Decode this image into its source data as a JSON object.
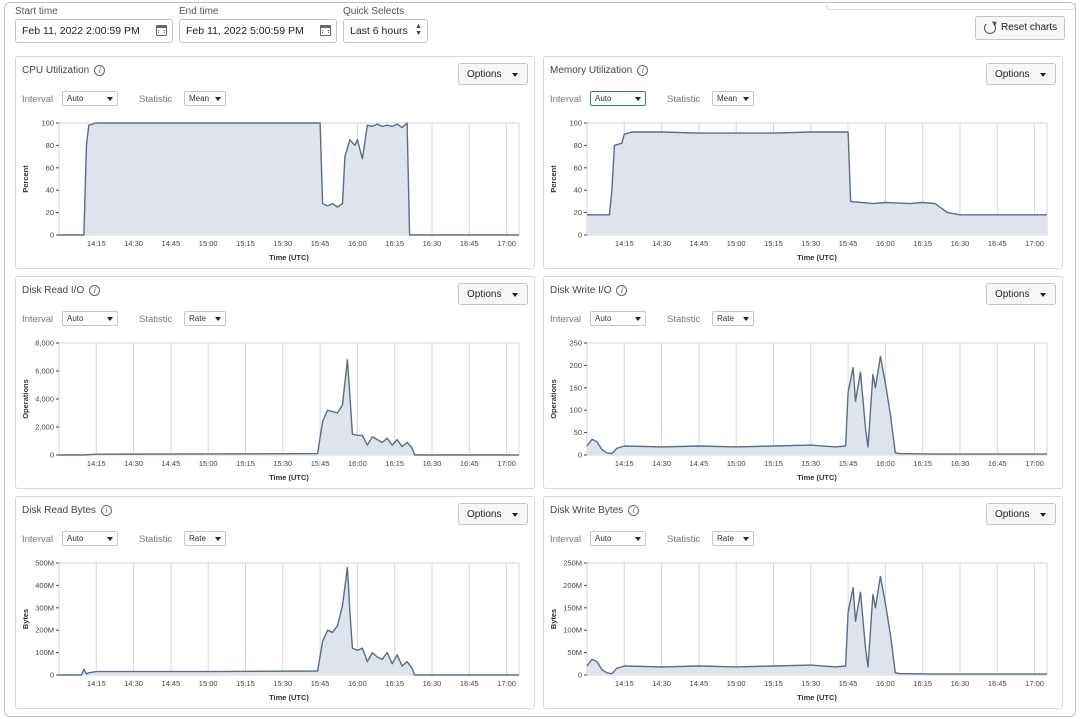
{
  "filters": {
    "start_label": "Start time",
    "start_value": "Feb 11, 2022 2:00:59 PM",
    "end_label": "End time",
    "end_value": "Feb 11, 2022 5:00:59 PM",
    "quick_label": "Quick Selects",
    "quick_value": "Last 6 hours",
    "reset_label": "Reset charts"
  },
  "controls": {
    "options_label": "Options",
    "interval_label": "Interval",
    "interval_value": "Auto",
    "statistic_label": "Statistic",
    "x_label": "Time (UTC)"
  },
  "x_ticks": [
    "14:15",
    "14:30",
    "14:45",
    "15:00",
    "15:15",
    "15:30",
    "15:45",
    "16:00",
    "16:15",
    "16:30",
    "16:45",
    "17:00"
  ],
  "colors": {
    "line": "#5a6d86",
    "fill": "#dfe3ec",
    "grid": "#d6d6d6",
    "axis": "#444444",
    "focus": "#3d6fb0"
  },
  "panels": [
    {
      "title": "CPU Utilization",
      "statistic": "Mean"
    },
    {
      "title": "Memory Utilization",
      "statistic": "Mean"
    },
    {
      "title": "Disk Read I/O",
      "statistic": "Rate"
    },
    {
      "title": "Disk Write I/O",
      "statistic": "Rate"
    },
    {
      "title": "Disk Read Bytes",
      "statistic": "Rate"
    },
    {
      "title": "Disk Write Bytes",
      "statistic": "Rate"
    }
  ],
  "chart_data": [
    {
      "type": "area",
      "title": "CPU Utilization",
      "xlabel": "Time (UTC)",
      "ylabel": "Percent",
      "yticks": [
        "0",
        "20",
        "40",
        "60",
        "80",
        "100"
      ],
      "ylim": [
        0,
        100
      ],
      "xlim": [
        "14:00",
        "17:05"
      ],
      "series": [
        {
          "x": [
            "14:00",
            "14:10",
            "14:11",
            "14:12",
            "14:15",
            "15:45",
            "15:46",
            "15:48",
            "15:50",
            "15:52",
            "15:54",
            "15:55",
            "15:57",
            "15:59",
            "16:00",
            "16:02",
            "16:04",
            "16:06",
            "16:08",
            "16:10",
            "16:12",
            "16:14",
            "16:16",
            "16:18",
            "16:20",
            "16:21",
            "16:22",
            "17:05"
          ],
          "values": [
            0,
            0,
            80,
            98,
            100,
            100,
            28,
            26,
            28,
            25,
            28,
            70,
            85,
            80,
            85,
            68,
            98,
            97,
            99,
            97,
            98,
            97,
            99,
            96,
            100,
            0,
            0,
            0
          ]
        }
      ]
    },
    {
      "type": "area",
      "title": "Memory Utilization",
      "xlabel": "Time (UTC)",
      "ylabel": "Percent",
      "yticks": [
        "0",
        "20",
        "40",
        "60",
        "80",
        "100"
      ],
      "ylim": [
        0,
        100
      ],
      "xlim": [
        "14:00",
        "17:05"
      ],
      "series": [
        {
          "x": [
            "14:00",
            "14:09",
            "14:10",
            "14:11",
            "14:14",
            "14:15",
            "14:18",
            "14:30",
            "14:45",
            "15:00",
            "15:15",
            "15:30",
            "15:44",
            "15:45",
            "15:46",
            "15:55",
            "16:00",
            "16:10",
            "16:15",
            "16:20",
            "16:25",
            "16:30",
            "17:05"
          ],
          "values": [
            18,
            18,
            40,
            80,
            82,
            90,
            92,
            92,
            91,
            91,
            91,
            92,
            92,
            92,
            30,
            28,
            29,
            28,
            29,
            28,
            20,
            18,
            18
          ]
        }
      ]
    },
    {
      "type": "area",
      "title": "Disk Read I/O",
      "xlabel": "Time (UTC)",
      "ylabel": "Operations",
      "yticks": [
        "0",
        "2,000",
        "4,000",
        "6,000",
        "8,000"
      ],
      "ylim": [
        0,
        8000
      ],
      "xlim": [
        "14:00",
        "17:05"
      ],
      "series": [
        {
          "x": [
            "14:00",
            "14:10",
            "14:15",
            "15:00",
            "15:44",
            "15:46",
            "15:48",
            "15:50",
            "15:52",
            "15:54",
            "15:56",
            "15:57",
            "15:58",
            "16:00",
            "16:02",
            "16:04",
            "16:06",
            "16:08",
            "16:10",
            "16:12",
            "16:14",
            "16:16",
            "16:18",
            "16:20",
            "16:22",
            "16:23",
            "17:05"
          ],
          "values": [
            0,
            0,
            60,
            80,
            100,
            2400,
            3200,
            3100,
            3000,
            3600,
            6800,
            4200,
            1500,
            1400,
            1400,
            700,
            1300,
            1100,
            900,
            1200,
            700,
            1100,
            600,
            900,
            500,
            0,
            0
          ]
        }
      ]
    },
    {
      "type": "area",
      "title": "Disk Write I/O",
      "xlabel": "Time (UTC)",
      "ylabel": "Operations",
      "yticks": [
        "0",
        "50",
        "100",
        "150",
        "200",
        "250"
      ],
      "ylim": [
        0,
        250
      ],
      "xlim": [
        "14:00",
        "17:05"
      ],
      "series": [
        {
          "x": [
            "14:00",
            "14:02",
            "14:04",
            "14:06",
            "14:08",
            "14:10",
            "14:12",
            "14:15",
            "14:30",
            "14:45",
            "15:00",
            "15:15",
            "15:30",
            "15:40",
            "15:44",
            "15:45",
            "15:47",
            "15:48",
            "15:50",
            "15:52",
            "15:53",
            "15:55",
            "15:56",
            "15:58",
            "16:00",
            "16:02",
            "16:04",
            "16:06",
            "16:10",
            "16:20",
            "17:05"
          ],
          "values": [
            20,
            35,
            30,
            12,
            5,
            3,
            15,
            20,
            18,
            20,
            18,
            20,
            22,
            18,
            20,
            140,
            195,
            120,
            185,
            60,
            18,
            180,
            150,
            220,
            160,
            90,
            5,
            3,
            3,
            2,
            2
          ]
        }
      ]
    },
    {
      "type": "area",
      "title": "Disk Read Bytes",
      "xlabel": "Time (UTC)",
      "ylabel": "Bytes",
      "yticks": [
        "0",
        "100M",
        "200M",
        "300M",
        "400M",
        "500M"
      ],
      "ylim": [
        0,
        500
      ],
      "xlim": [
        "14:00",
        "17:05"
      ],
      "series": [
        {
          "x": [
            "14:00",
            "14:09",
            "14:10",
            "14:11",
            "14:12",
            "14:15",
            "15:00",
            "15:44",
            "15:46",
            "15:48",
            "15:50",
            "15:52",
            "15:54",
            "15:56",
            "15:57",
            "15:58",
            "16:00",
            "16:02",
            "16:04",
            "16:06",
            "16:08",
            "16:10",
            "16:12",
            "16:14",
            "16:16",
            "16:18",
            "16:20",
            "16:22",
            "16:23",
            "17:05"
          ],
          "values": [
            0,
            0,
            25,
            5,
            10,
            15,
            15,
            18,
            150,
            200,
            190,
            220,
            310,
            480,
            280,
            120,
            110,
            120,
            60,
            100,
            80,
            70,
            100,
            50,
            90,
            40,
            60,
            30,
            0,
            0
          ]
        }
      ]
    },
    {
      "type": "area",
      "title": "Disk Write Bytes",
      "xlabel": "Time (UTC)",
      "ylabel": "Bytes",
      "yticks": [
        "0",
        "50M",
        "100M",
        "150M",
        "200M",
        "250M"
      ],
      "ylim": [
        0,
        250
      ],
      "xlim": [
        "14:00",
        "17:05"
      ],
      "series": [
        {
          "x": [
            "14:00",
            "14:02",
            "14:04",
            "14:06",
            "14:08",
            "14:10",
            "14:12",
            "14:15",
            "14:30",
            "14:45",
            "15:00",
            "15:15",
            "15:30",
            "15:40",
            "15:44",
            "15:45",
            "15:47",
            "15:48",
            "15:50",
            "15:52",
            "15:53",
            "15:55",
            "15:56",
            "15:58",
            "16:00",
            "16:02",
            "16:04",
            "16:06",
            "16:10",
            "16:20",
            "17:05"
          ],
          "values": [
            20,
            35,
            30,
            12,
            5,
            3,
            15,
            20,
            18,
            20,
            18,
            20,
            22,
            18,
            20,
            140,
            195,
            120,
            185,
            60,
            18,
            180,
            150,
            220,
            160,
            90,
            5,
            3,
            3,
            2,
            2
          ]
        }
      ]
    }
  ]
}
